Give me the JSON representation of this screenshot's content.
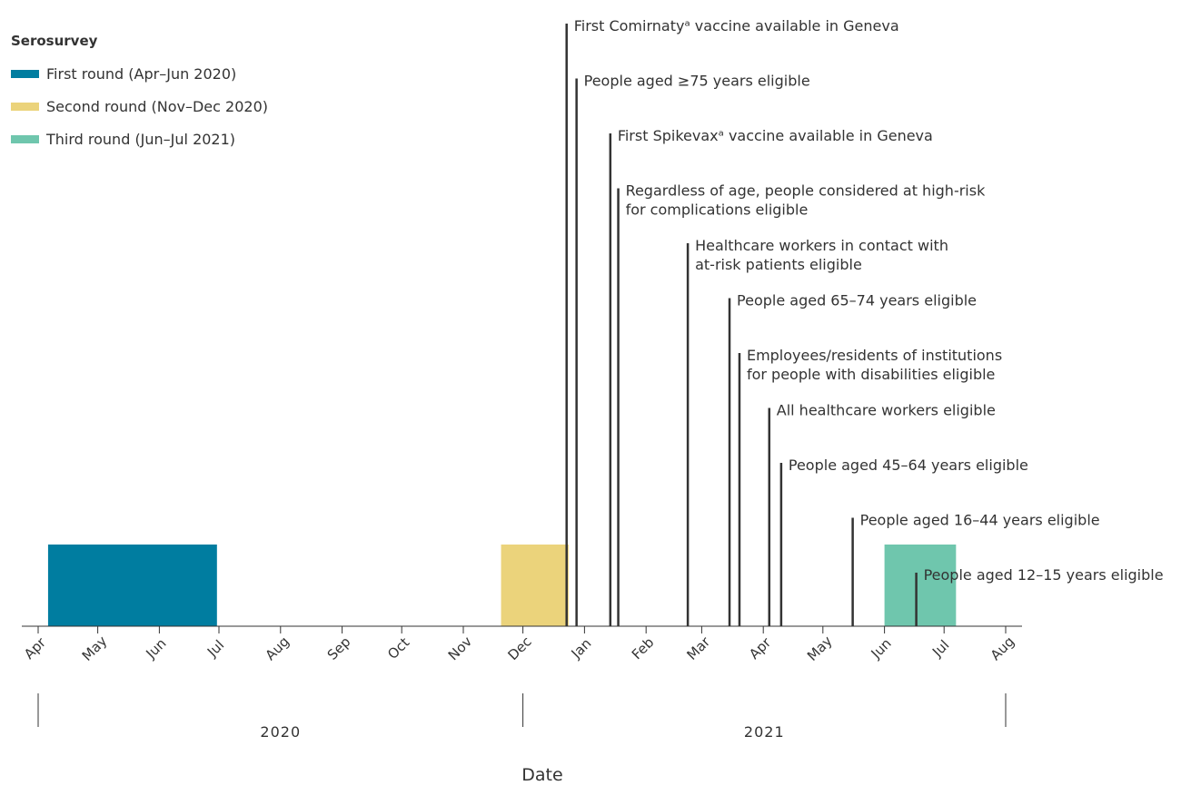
{
  "chart_data": {
    "type": "timeline",
    "title": "",
    "xlabel": "Date",
    "ylabel": "",
    "x_range": [
      "2020-04-01",
      "2021-08-01"
    ],
    "month_ticks": [
      {
        "date": "2020-04-01",
        "label": "Apr"
      },
      {
        "date": "2020-05-01",
        "label": "May"
      },
      {
        "date": "2020-06-01",
        "label": "Jun"
      },
      {
        "date": "2020-07-01",
        "label": "Jul"
      },
      {
        "date": "2020-08-01",
        "label": "Aug"
      },
      {
        "date": "2020-09-01",
        "label": "Sep"
      },
      {
        "date": "2020-10-01",
        "label": "Oct"
      },
      {
        "date": "2020-11-01",
        "label": "Nov"
      },
      {
        "date": "2020-12-01",
        "label": "Dec"
      },
      {
        "date": "2021-01-01",
        "label": "Jan"
      },
      {
        "date": "2021-02-01",
        "label": "Feb"
      },
      {
        "date": "2021-03-01",
        "label": "Mar"
      },
      {
        "date": "2021-04-01",
        "label": "Apr"
      },
      {
        "date": "2021-05-01",
        "label": "May"
      },
      {
        "date": "2021-06-01",
        "label": "Jun"
      },
      {
        "date": "2021-07-01",
        "label": "Jul"
      },
      {
        "date": "2021-08-01",
        "label": "Aug"
      }
    ],
    "year_labels": [
      {
        "label": "2020",
        "from": "2020-04-01",
        "to": "2020-12-01"
      },
      {
        "label": "2021",
        "from": "2020-12-01",
        "to": "2021-08-01"
      }
    ],
    "legend": {
      "title": "Serosurvey",
      "items": [
        {
          "label": "First round  (Apr–Jun 2020)",
          "color": "#007da0"
        },
        {
          "label": "Second round  (Nov–Dec 2020)",
          "color": "#ebd37b"
        },
        {
          "label": "Third round  (Jun–Jul 2021)",
          "color": "#6fc6ad"
        }
      ]
    },
    "rounds": [
      {
        "start": "2020-04-06",
        "end": "2020-06-30",
        "color": "#007da0"
      },
      {
        "start": "2020-11-20",
        "end": "2020-12-24",
        "color": "#ebd37b"
      },
      {
        "start": "2021-06-01",
        "end": "2021-07-07",
        "color": "#6fc6ad"
      }
    ],
    "events": [
      {
        "date": "2020-12-23",
        "lines": [
          "First Comirnatyᵃ vaccine available in Geneva"
        ]
      },
      {
        "date": "2020-12-28",
        "lines": [
          "People aged ≥75 years eligible"
        ]
      },
      {
        "date": "2021-01-14",
        "lines": [
          "First Spikevaxᵃ vaccine available in Geneva"
        ]
      },
      {
        "date": "2021-01-18",
        "lines": [
          "Regardless of age, people considered at high-risk",
          "for complications eligible"
        ]
      },
      {
        "date": "2021-02-22",
        "lines": [
          "Healthcare workers in contact with",
          "at-risk patients eligible"
        ]
      },
      {
        "date": "2021-03-15",
        "lines": [
          "People aged 65–74 years eligible"
        ]
      },
      {
        "date": "2021-03-20",
        "lines": [
          "Employees/residents of institutions",
          "for people with disabilities eligible"
        ]
      },
      {
        "date": "2021-04-04",
        "lines": [
          "All healthcare workers eligible"
        ]
      },
      {
        "date": "2021-04-10",
        "lines": [
          "People aged 45–64 years eligible"
        ]
      },
      {
        "date": "2021-05-16",
        "lines": [
          "People aged 16–44 years eligible"
        ]
      },
      {
        "date": "2021-06-17",
        "lines": [
          "People aged 12–15 years eligible"
        ]
      }
    ]
  }
}
